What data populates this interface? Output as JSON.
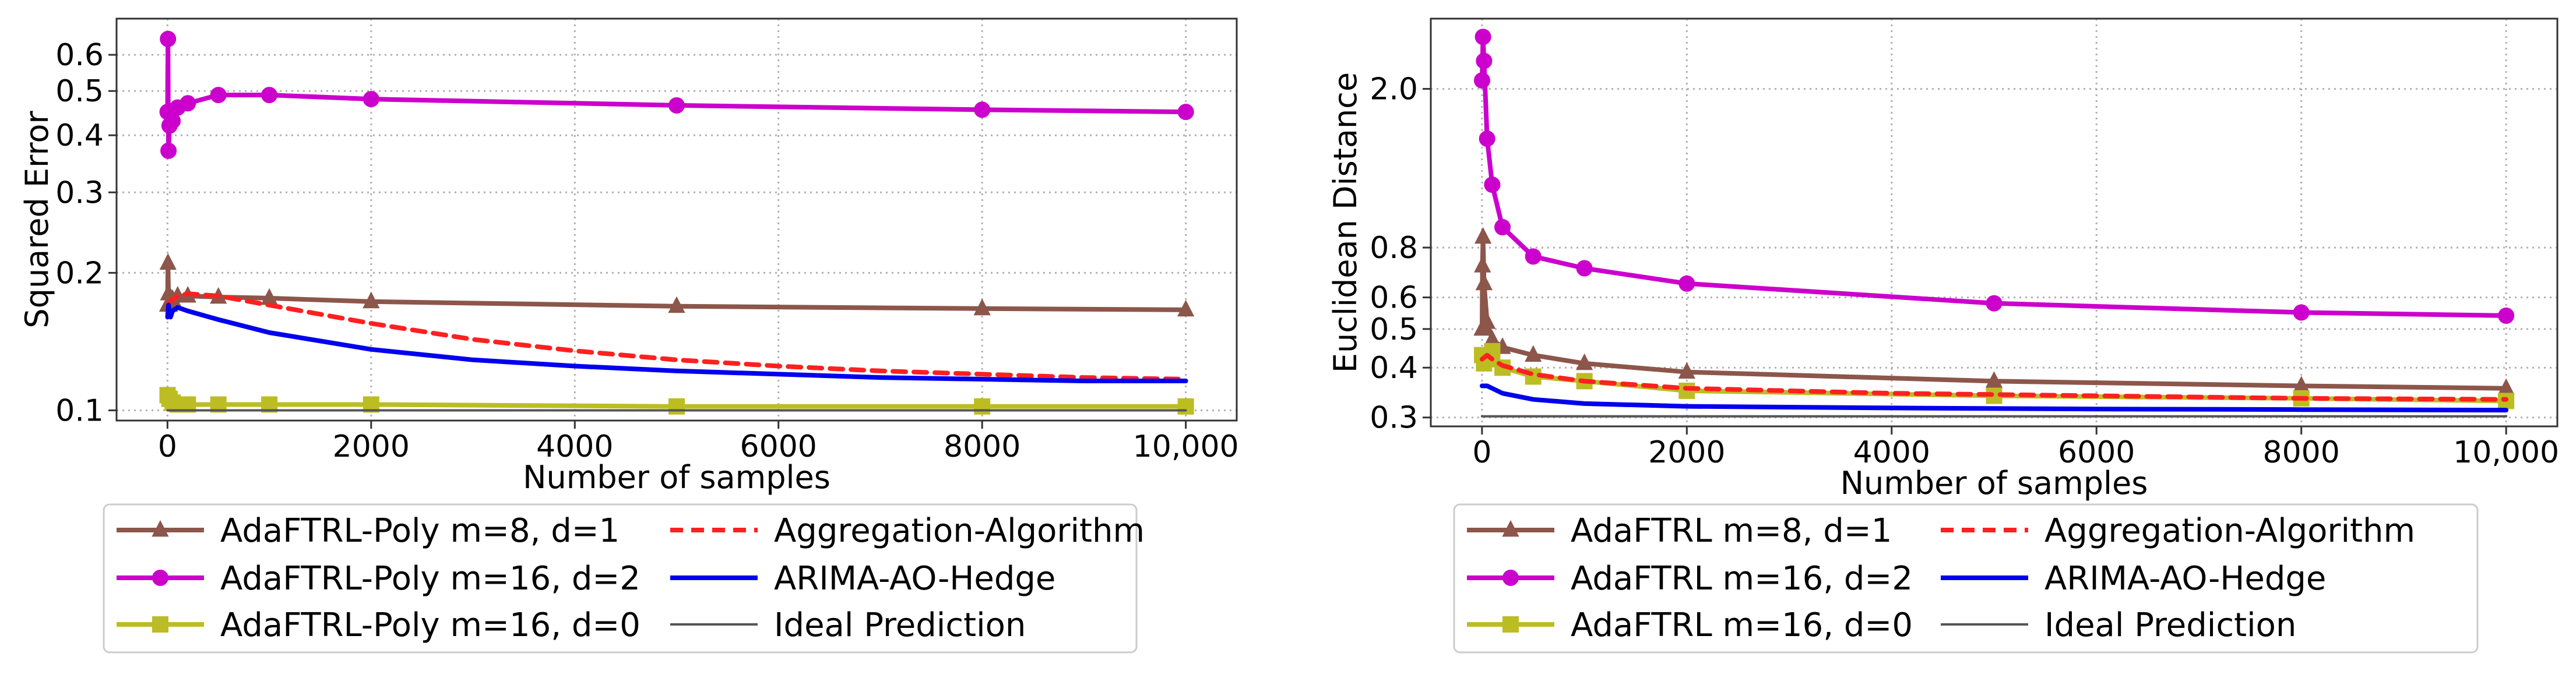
{
  "chart_data": [
    {
      "type": "line",
      "title": "",
      "xlabel": "Number of samples",
      "ylabel": "Squared Error",
      "yscale": "log",
      "xlim": [
        -500,
        10500
      ],
      "ylim": [
        0.095,
        0.72
      ],
      "xticks": [
        0,
        2000,
        4000,
        6000,
        8000,
        10000
      ],
      "xtick_labels": [
        "0",
        "2000",
        "4000",
        "6000",
        "8000",
        "10,000"
      ],
      "yticks": [
        0.1,
        0.2,
        0.3,
        0.4,
        0.5,
        0.6
      ],
      "ytick_labels": [
        "0.1",
        "0.2",
        "0.3",
        "0.4",
        "0.5",
        "0.6"
      ],
      "grid": true,
      "legend_placement": "below",
      "series": [
        {
          "name": "AdaFTRL-Poly m=8, d=1",
          "color": "#8c564b",
          "marker": "triangle",
          "dash": "",
          "x": [
            1,
            5,
            10,
            20,
            50,
            100,
            200,
            500,
            1000,
            2000,
            5000,
            8000,
            10000
          ],
          "y": [
            0.17,
            0.21,
            0.18,
            0.17,
            0.175,
            0.178,
            0.178,
            0.177,
            0.176,
            0.173,
            0.169,
            0.167,
            0.166
          ]
        },
        {
          "name": "AdaFTRL-Poly m=16, d=2",
          "color": "#cc00cc",
          "marker": "circle",
          "dash": "",
          "x": [
            1,
            5,
            10,
            20,
            50,
            100,
            200,
            500,
            1000,
            2000,
            5000,
            8000,
            10000
          ],
          "y": [
            0.45,
            0.65,
            0.37,
            0.42,
            0.43,
            0.46,
            0.47,
            0.49,
            0.49,
            0.48,
            0.465,
            0.455,
            0.45
          ]
        },
        {
          "name": "AdaFTRL-Poly m=16, d=0",
          "color": "#bcbd22",
          "marker": "square",
          "dash": "",
          "x": [
            1,
            20,
            50,
            100,
            200,
            500,
            1000,
            2000,
            5000,
            8000,
            10000
          ],
          "y": [
            0.108,
            0.106,
            0.104,
            0.103,
            0.103,
            0.103,
            0.103,
            0.103,
            0.102,
            0.102,
            0.102
          ]
        },
        {
          "name": "Aggregation-Algorithm",
          "color": "#ff2020",
          "marker": "none",
          "dash": "22,14",
          "x": [
            1,
            50,
            100,
            200,
            500,
            1000,
            2000,
            3000,
            4000,
            5000,
            6000,
            7000,
            8000,
            9000,
            10000
          ],
          "y": [
            0.17,
            0.175,
            0.178,
            0.18,
            0.178,
            0.17,
            0.155,
            0.143,
            0.135,
            0.129,
            0.125,
            0.122,
            0.12,
            0.118,
            0.117
          ]
        },
        {
          "name": "ARIMA-AO-Hedge",
          "color": "#0000ee",
          "marker": "none",
          "dash": "",
          "x": [
            1,
            10,
            30,
            50,
            100,
            200,
            500,
            1000,
            2000,
            3000,
            4000,
            5000,
            6000,
            7000,
            8000,
            9000,
            10000
          ],
          "y": [
            0.16,
            0.17,
            0.16,
            0.165,
            0.168,
            0.165,
            0.158,
            0.148,
            0.136,
            0.129,
            0.125,
            0.122,
            0.12,
            0.118,
            0.117,
            0.116,
            0.116
          ]
        },
        {
          "name": "Ideal Prediction",
          "color": "#555555",
          "marker": "none",
          "dash": "",
          "x": [
            0,
            10000
          ],
          "y": [
            0.1,
            0.1
          ]
        }
      ]
    },
    {
      "type": "line",
      "title": "",
      "xlabel": "Number of samples",
      "ylabel": "Euclidean Distance",
      "yscale": "log",
      "xlim": [
        -500,
        10500
      ],
      "ylim": [
        0.285,
        3.0
      ],
      "xticks": [
        0,
        2000,
        4000,
        6000,
        8000,
        10000
      ],
      "xtick_labels": [
        "0",
        "2000",
        "4000",
        "6000",
        "8000",
        "10,000"
      ],
      "yticks": [
        0.3,
        0.4,
        0.5,
        0.6,
        0.8,
        2.0
      ],
      "ytick_labels": [
        "0.3",
        "0.4",
        "0.5",
        "0.6",
        "0.8",
        "2.0"
      ],
      "grid": true,
      "legend_placement": "below",
      "series": [
        {
          "name": "AdaFTRL m=8, d=1",
          "color": "#8c564b",
          "marker": "triangle",
          "dash": "",
          "x": [
            1,
            5,
            10,
            20,
            50,
            100,
            200,
            500,
            1000,
            2000,
            5000,
            8000,
            10000
          ],
          "y": [
            0.5,
            0.72,
            0.85,
            0.65,
            0.52,
            0.47,
            0.45,
            0.43,
            0.41,
            0.39,
            0.37,
            0.36,
            0.355
          ]
        },
        {
          "name": "AdaFTRL m=16, d=2",
          "color": "#cc00cc",
          "marker": "circle",
          "dash": "",
          "x": [
            1,
            10,
            20,
            50,
            100,
            200,
            500,
            1000,
            2000,
            5000,
            8000,
            10000
          ],
          "y": [
            2.1,
            2.7,
            2.35,
            1.5,
            1.15,
            0.9,
            0.76,
            0.71,
            0.65,
            0.58,
            0.55,
            0.54
          ]
        },
        {
          "name": "AdaFTRL m=16, d=0",
          "color": "#bcbd22",
          "marker": "square",
          "dash": "",
          "x": [
            1,
            20,
            50,
            100,
            200,
            500,
            1000,
            2000,
            5000,
            8000,
            10000
          ],
          "y": [
            0.43,
            0.41,
            0.42,
            0.44,
            0.4,
            0.38,
            0.37,
            0.35,
            0.34,
            0.335,
            0.33
          ]
        },
        {
          "name": "Aggregation-Algorithm",
          "color": "#ff2020",
          "marker": "none",
          "dash": "22,14",
          "x": [
            1,
            50,
            100,
            200,
            500,
            1000,
            2000,
            4000,
            6000,
            8000,
            10000
          ],
          "y": [
            0.42,
            0.43,
            0.42,
            0.405,
            0.385,
            0.37,
            0.355,
            0.345,
            0.34,
            0.335,
            0.333
          ]
        },
        {
          "name": "ARIMA-AO-Hedge",
          "color": "#0000ee",
          "marker": "none",
          "dash": "",
          "x": [
            1,
            50,
            100,
            200,
            500,
            1000,
            2000,
            4000,
            6000,
            8000,
            10000
          ],
          "y": [
            0.36,
            0.36,
            0.355,
            0.345,
            0.333,
            0.325,
            0.32,
            0.317,
            0.315,
            0.314,
            0.313
          ]
        },
        {
          "name": "Ideal Prediction",
          "color": "#555555",
          "marker": "none",
          "dash": "",
          "x": [
            0,
            10000
          ],
          "y": [
            0.302,
            0.302
          ]
        }
      ]
    }
  ]
}
